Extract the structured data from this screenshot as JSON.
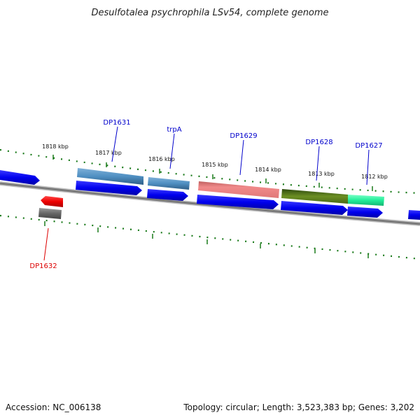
{
  "title": "Desulfotalea psychrophila LSv54, complete genome",
  "footer": {
    "accession": "Accession: NC_006138",
    "summary": "Topology: circular; Length: 3,523,383 bp; Genes: 3,202"
  },
  "ruler_labels": [
    "1818 kbp",
    "1817 kbp",
    "1816 kbp",
    "1815 kbp",
    "1814 kbp",
    "1813 kbp",
    "1812 kbp"
  ],
  "gene_labels": [
    "DP1631",
    "trpA",
    "DP1629",
    "DP1628",
    "DP1627",
    "DP1632"
  ],
  "colors": {
    "forward_label": "#0000cc",
    "reverse_label": "#dd0000",
    "cds": "#0000ee",
    "ruler_tick": "#1a7a1a",
    "backbone": "#808080"
  }
}
